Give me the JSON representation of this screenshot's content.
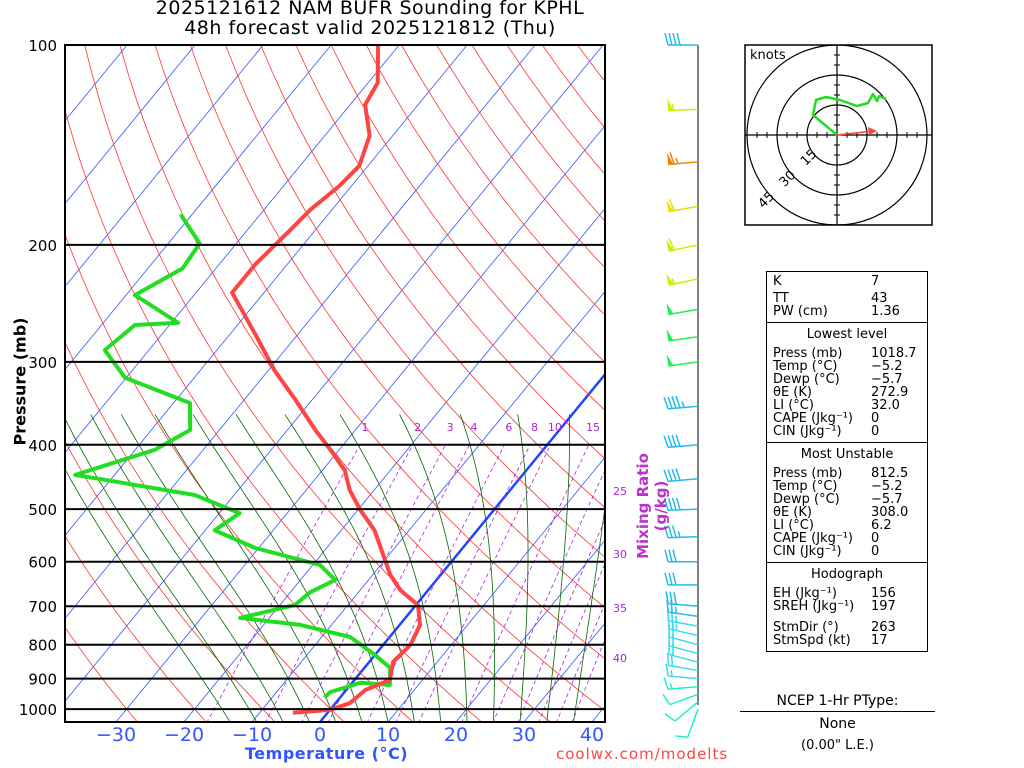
{
  "header": {
    "title_line1": "2025121612 NAM BUFR Sounding for KPHL",
    "title_line2": "48h forecast valid 2025121812 (Thu)"
  },
  "chart_data": {
    "type": "line",
    "subtype": "skew-T log-p",
    "xlabel": "Temperature (°C)",
    "ylabel": "Pressure (mb)",
    "mixing_ratio_label": "Mixing Ratio (g/kg)",
    "pressure_ticks": [
      100,
      200,
      300,
      400,
      500,
      600,
      700,
      800,
      900,
      1000
    ],
    "temperature_ticks": [
      -30,
      -20,
      -10,
      0,
      10,
      20,
      30,
      40
    ],
    "temperature_tick_labels": [
      "−30",
      "−20",
      "−10",
      "0",
      "10",
      "20",
      "30",
      "40"
    ],
    "mixing_ratio_values": [
      1,
      2,
      3,
      4,
      6,
      8,
      10,
      15,
      20,
      25,
      30,
      35,
      40
    ],
    "isotherm_step": 10,
    "dry_adiabats_theta_c": [
      -30,
      -20,
      -10,
      0,
      10,
      20,
      30,
      40,
      50,
      60,
      70,
      80,
      90,
      100,
      110,
      120,
      130,
      140,
      150,
      160,
      170,
      180,
      190,
      200,
      210,
      220,
      230
    ],
    "moist_adiabats_t1000_c": [
      -16,
      -12,
      -8,
      -4,
      0,
      4,
      8,
      12,
      16,
      20,
      24,
      28,
      32,
      36
    ],
    "ylim_mb": [
      1050,
      100
    ],
    "temperature_profile": {
      "name": "Temperature",
      "color": "#ff4444",
      "p": [
        1013,
        1003,
        980,
        936,
        904,
        849,
        800,
        747,
        697,
        662,
        628,
        538,
        501,
        468,
        437,
        407,
        380,
        342,
        309,
        273,
        236,
        214,
        190,
        177,
        163,
        152,
        137,
        123,
        114,
        100
      ],
      "t": [
        -5.1,
        0.0,
        2.1,
        2.8,
        5.2,
        3.5,
        4.0,
        3.0,
        0.3,
        -4.1,
        -7.4,
        -15.1,
        -19.7,
        -23.6,
        -26.7,
        -31.3,
        -35.9,
        -42.5,
        -49.1,
        -56.2,
        -64.7,
        -64.7,
        -63.7,
        -63.2,
        -61.8,
        -61.3,
        -63.4,
        -67.8,
        -68.6,
        -73.1
      ]
    },
    "dewpoint_profile": {
      "name": "Dewpoint",
      "color": "#22dd22",
      "p": [
        961,
        943,
        913,
        920,
        867,
        829,
        779,
        747,
        729,
        697,
        667,
        639,
        607,
        572,
        538,
        507,
        476,
        444,
        407,
        380,
        346,
        317,
        288,
        264,
        262,
        238,
        217,
        199,
        180
      ],
      "t": [
        -2.3,
        -2.1,
        1.2,
        5.8,
        3.8,
        0.0,
        -5.8,
        -14.6,
        -24.3,
        -17.8,
        -17.1,
        -14.9,
        -18.9,
        -30.5,
        -38.6,
        -37.0,
        -45.8,
        -65.8,
        -57.1,
        -54.3,
        -57.6,
        -70.2,
        -76.5,
        -75.1,
        -69.0,
        -78.7,
        -74.9,
        -75.4,
        -81.7
      ]
    },
    "winds": {
      "p": [
        1000,
        975,
        950,
        925,
        900,
        875,
        850,
        825,
        800,
        775,
        750,
        725,
        700,
        650,
        600,
        550,
        500,
        450,
        400,
        350,
        300,
        275,
        250,
        225,
        200,
        175,
        150,
        125,
        100
      ],
      "dir": [
        200,
        230,
        250,
        265,
        275,
        280,
        285,
        285,
        285,
        283,
        280,
        278,
        275,
        270,
        270,
        268,
        268,
        265,
        265,
        265,
        262,
        262,
        260,
        258,
        258,
        260,
        265,
        268,
        270
      ],
      "speed_kt": [
        8,
        10,
        12,
        14,
        16,
        18,
        20,
        21,
        22,
        23,
        25,
        26,
        28,
        30,
        32,
        35,
        38,
        40,
        42,
        45,
        48,
        50,
        52,
        55,
        58,
        62,
        65,
        55,
        40
      ]
    },
    "wind_color_scale": [
      {
        "max": 15,
        "color": "#22eecc"
      },
      {
        "max": 25,
        "color": "#33ddee"
      },
      {
        "max": 45,
        "color": "#22bbee"
      },
      {
        "max": 52,
        "color": "#22ee55"
      },
      {
        "max": 58,
        "color": "#ccee00"
      },
      {
        "max": 63,
        "color": "#eedd00"
      },
      {
        "max": 100,
        "color": "#ee8800"
      }
    ],
    "hodograph": {
      "units_label": "knots",
      "ring_labels": [
        "15",
        "30",
        "45"
      ],
      "rings_kt": [
        15,
        30,
        45
      ],
      "u": [
        0,
        -12,
        -10.5,
        -5.5,
        1.5,
        10,
        15.5,
        18,
        20,
        21,
        24.5
      ],
      "v": [
        0,
        10,
        17.5,
        19,
        17.5,
        14.5,
        16,
        20.5,
        17,
        19.5,
        18
      ],
      "storm_motion_u": 18,
      "storm_motion_v": 2,
      "line_color": "#22dd22",
      "storm_color": "#ff4444"
    }
  },
  "stats": {
    "indices": [
      {
        "k": "K",
        "v": "7"
      },
      {
        "k": "TT",
        "v": "43"
      },
      {
        "k": "PW (cm)",
        "v": "1.36"
      }
    ],
    "lowest": {
      "title": "Lowest level",
      "rows": [
        {
          "k": "Press (mb)",
          "v": "1018.7"
        },
        {
          "k": "Temp (°C)",
          "v": "−5.2"
        },
        {
          "k": "Dewp (°C)",
          "v": "−5.7"
        },
        {
          "k": "θE (K)",
          "v": "272.9"
        },
        {
          "k": "LI (°C)",
          "v": "32.0"
        },
        {
          "k": "CAPE (Jkg⁻¹)",
          "v": "0"
        },
        {
          "k": "CIN (Jkg⁻¹)",
          "v": "0"
        }
      ]
    },
    "most_unstable": {
      "title": "Most Unstable",
      "rows": [
        {
          "k": "Press (mb)",
          "v": "812.5"
        },
        {
          "k": "Temp (°C)",
          "v": "−5.2"
        },
        {
          "k": "Dewp (°C)",
          "v": "−5.7"
        },
        {
          "k": "θE (K)",
          "v": "308.0"
        },
        {
          "k": "LI (°C)",
          "v": "6.2"
        },
        {
          "k": "CAPE (Jkg⁻¹)",
          "v": "0"
        },
        {
          "k": "CIN (Jkg⁻¹)",
          "v": "0"
        }
      ]
    },
    "hodograph": {
      "title": "Hodograph",
      "rows": [
        {
          "k": "EH (Jkg⁻¹)",
          "v": "156"
        },
        {
          "k": "SREH (Jkg⁻¹)",
          "v": "197"
        }
      ],
      "rows2": [
        {
          "k": "StmDir (°)",
          "v": "263"
        },
        {
          "k": "StmSpd (kt)",
          "v": "17"
        }
      ]
    }
  },
  "ptype": {
    "heading": "NCEP 1-Hr PType:",
    "value": "None",
    "amount": "(0.00\" L.E.)"
  },
  "credit": "coolwx.com/modelts"
}
